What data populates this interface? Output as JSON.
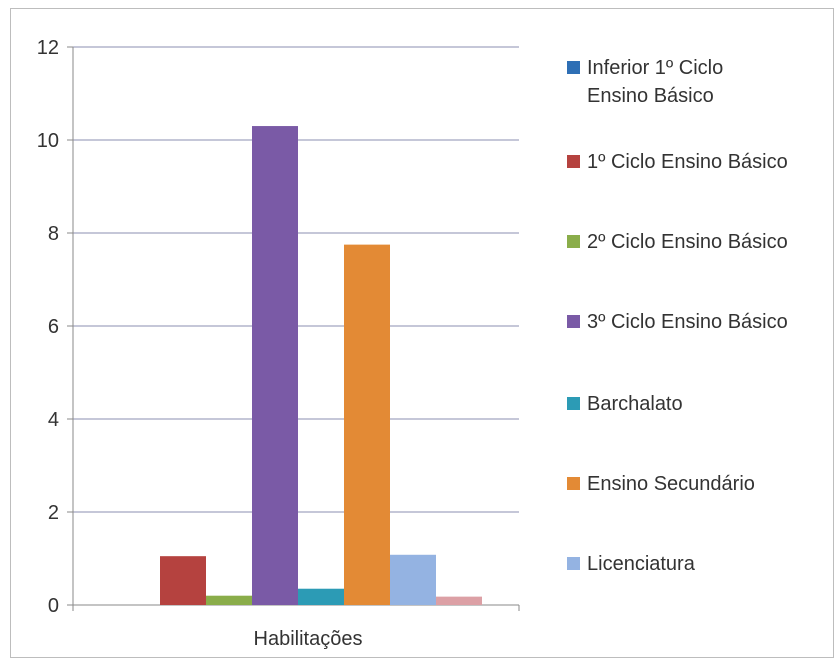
{
  "chart_data": {
    "type": "bar",
    "categories": [
      "Habilitações"
    ],
    "series": [
      {
        "name": "Inferior 1º Ciclo Ensino Básico",
        "values": [
          0
        ],
        "color": "#2e6fb5"
      },
      {
        "name": "1º Ciclo Ensino Básico",
        "values": [
          1.05
        ],
        "color": "#b5423f"
      },
      {
        "name": "2º Ciclo Ensino Básico",
        "values": [
          0.2
        ],
        "color": "#8aad4a"
      },
      {
        "name": "3º Ciclo Ensino Básico",
        "values": [
          10.3
        ],
        "color": "#7a5aa6"
      },
      {
        "name": "Barchalato",
        "values": [
          0.35
        ],
        "color": "#2c9bb5"
      },
      {
        "name": "Ensino Secundário",
        "values": [
          7.75
        ],
        "color": "#e38a35"
      },
      {
        "name": "Licenciatura",
        "values": [
          1.08
        ],
        "color": "#94b3e2"
      },
      {
        "name": "",
        "values": [
          0.18
        ],
        "color": "#dca0a5"
      }
    ],
    "ylim": [
      0,
      12
    ],
    "yticks": [
      "0",
      "2",
      "4",
      "6",
      "8",
      "10",
      "12"
    ],
    "grid": true,
    "legend": "right",
    "title": "",
    "xlabel": "",
    "ylabel": ""
  }
}
